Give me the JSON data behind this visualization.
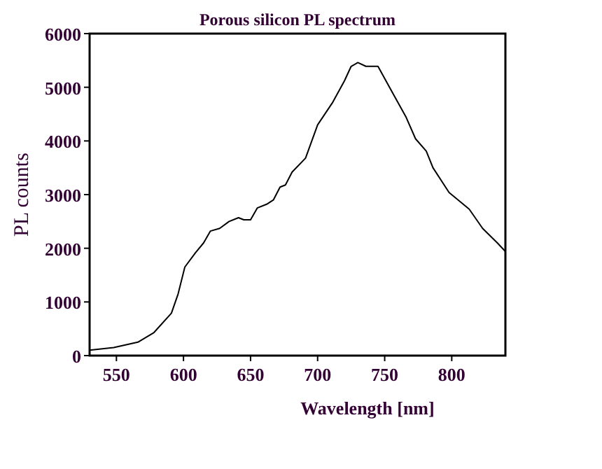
{
  "chart_data": {
    "type": "line",
    "title": "Porous silicon PL spectrum",
    "xlabel": "Wavelength [nm]",
    "ylabel": "PL counts",
    "xlim": [
      530,
      840
    ],
    "xticks": [
      550,
      600,
      650,
      700,
      750,
      800
    ],
    "ylim": [
      0,
      6000
    ],
    "yticks": [
      0,
      1000,
      2000,
      3000,
      4000,
      5000,
      6000
    ],
    "grid": false,
    "marker": "none",
    "line_style": "solid",
    "series": [
      {
        "color": "#000000",
        "x": [
          530,
          548,
          566,
          578,
          591,
          596,
          601,
          609,
          615,
          620,
          627,
          634,
          641,
          645,
          650,
          655,
          662,
          667,
          672,
          676,
          681,
          691,
          700,
          711,
          720,
          725,
          730,
          736,
          745,
          756,
          766,
          773,
          781,
          786,
          798,
          813,
          823,
          834,
          840
        ],
        "values": [
          100,
          150,
          250,
          430,
          790,
          1150,
          1650,
          1920,
          2100,
          2320,
          2370,
          2500,
          2570,
          2530,
          2530,
          2750,
          2820,
          2900,
          3140,
          3180,
          3420,
          3680,
          4300,
          4710,
          5120,
          5390,
          5460,
          5390,
          5390,
          4890,
          4440,
          4040,
          3810,
          3500,
          3040,
          2730,
          2370,
          2100,
          1940
        ]
      }
    ]
  }
}
